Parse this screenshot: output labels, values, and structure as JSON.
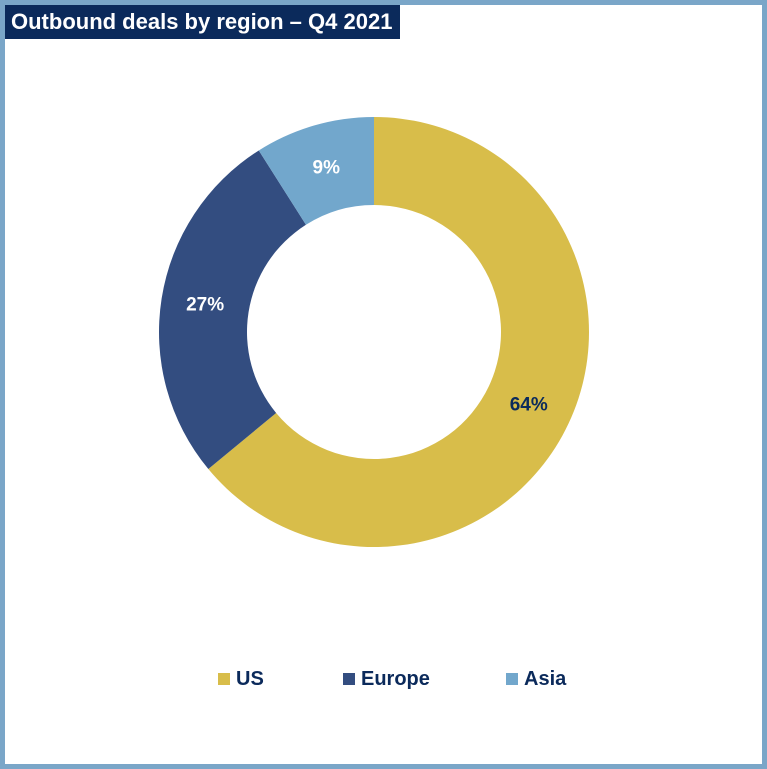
{
  "chart_data": {
    "type": "pie",
    "title": "Outbound deals by region – Q4 2021",
    "categories": [
      "US",
      "Europe",
      "Asia"
    ],
    "values": [
      64,
      27,
      9
    ],
    "value_labels": [
      "64%",
      "27%",
      "9%"
    ],
    "colors": [
      "#d8bd4a",
      "#334d80",
      "#72a7cc"
    ],
    "label_colors": [
      "#0b2a5b",
      "#ffffff",
      "#ffffff"
    ],
    "donut": true,
    "legend_position": "bottom"
  },
  "frame_color": "#7aa6c8",
  "title_bg": "#0b2a5b"
}
